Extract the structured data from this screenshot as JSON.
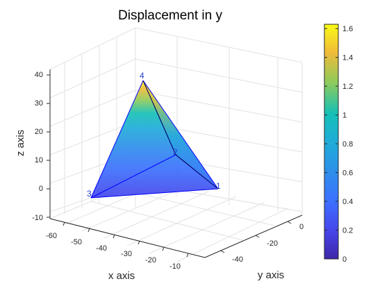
{
  "chart_data": {
    "type": "3d-surface",
    "title": "Displacement in y",
    "xlabel": "x axis",
    "ylabel": "y axis",
    "zlabel": "z axis",
    "xlim": [
      -65,
      -5
    ],
    "ylim": [
      -50,
      5
    ],
    "zlim": [
      -12,
      44
    ],
    "x_ticks": [
      "-60",
      "-50",
      "-40",
      "-30",
      "-20",
      "-10"
    ],
    "y_ticks": [
      "-40",
      "-20",
      "0"
    ],
    "z_ticks": [
      "-10",
      "0",
      "10",
      "20",
      "30",
      "40"
    ],
    "grid": true,
    "colormap": "parula",
    "colorbar": {
      "range": [
        0,
        1.63
      ],
      "ticks": [
        "0",
        "0.2",
        "0.4",
        "0.6",
        "0.8",
        "1",
        "1.2",
        "1.4",
        "1.6"
      ]
    },
    "nodes": [
      {
        "label": "1",
        "value": 0.4
      },
      {
        "label": "2",
        "value": 0.55
      },
      {
        "label": "3",
        "value": 0.18
      },
      {
        "label": "4",
        "value": 1.63
      }
    ],
    "edge_color": "#0000ff",
    "node_label_color": "#1f3fd0"
  }
}
